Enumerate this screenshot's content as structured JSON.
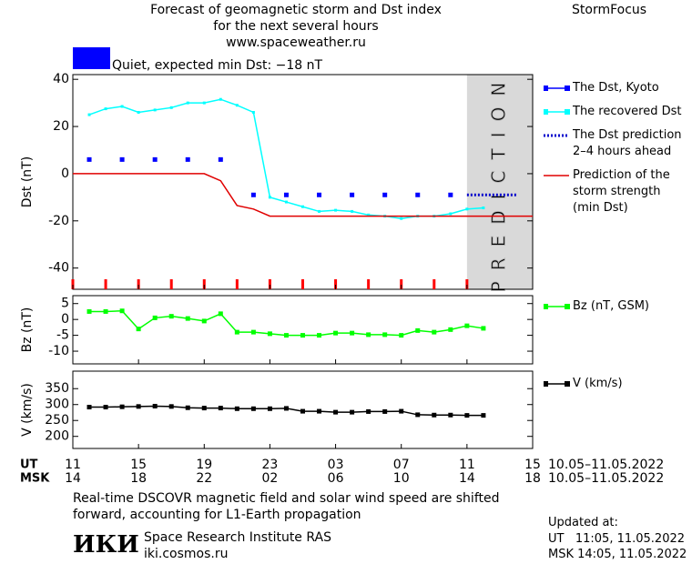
{
  "header": {
    "title": "Forecast of geomagnetic storm and Dst index\nfor the next several hours\nwww.spaceweather.ru",
    "brand": "StormFocus",
    "status": "Quiet, expected min Dst: −18 nT",
    "status_color": "#0000ff"
  },
  "chart_data": [
    {
      "type": "line",
      "ylabel": "Dst (nT)",
      "xlim": [
        11,
        39
      ],
      "ylim": [
        -49,
        42
      ],
      "yticks": [
        -40,
        -20,
        0,
        20,
        40
      ],
      "minor_xticks": {
        "color": "#ff0000",
        "values": [
          11,
          13,
          15,
          17,
          19,
          21,
          23,
          25,
          27,
          29,
          31,
          33,
          35
        ]
      },
      "prediction_region": {
        "x": [
          35,
          39
        ],
        "label": "PREDICTION",
        "color": "#d9d9d9"
      },
      "series": [
        {
          "name": "The Dst, Kyoto",
          "color": "#0000ff",
          "line": "none",
          "marker": "square",
          "x": [
            12,
            14,
            16,
            18,
            20,
            22,
            24,
            26,
            28,
            30,
            32,
            34
          ],
          "values": [
            6,
            6,
            6,
            6,
            6,
            -9,
            -9,
            -9,
            -9,
            -9,
            -9,
            -9
          ]
        },
        {
          "name": "The recovered Dst",
          "color": "#00ffff",
          "line": "solid",
          "marker": "small",
          "x": [
            12,
            13,
            14,
            15,
            16,
            17,
            18,
            19,
            20,
            21,
            22,
            23,
            24,
            25,
            26,
            27,
            28,
            29,
            30,
            31,
            32,
            33,
            34,
            35,
            36
          ],
          "values": [
            25,
            27.5,
            28.5,
            26,
            27,
            28,
            30,
            30,
            31.5,
            29,
            26,
            -10,
            -12,
            -14,
            -16,
            -15.5,
            -16,
            -17.5,
            -18,
            -19,
            -18,
            -18,
            -17,
            -15,
            -14.5
          ]
        },
        {
          "name": "The Dst prediction\n2–4 hours ahead",
          "color": "#0000cc",
          "line": "dotted",
          "marker": "none",
          "x": [
            35,
            38
          ],
          "values": [
            -9,
            -9
          ]
        },
        {
          "name": "Prediction of the\nstorm strength\n(min Dst)",
          "color": "#e00000",
          "line": "solid",
          "marker": "none",
          "x": [
            11,
            19,
            20,
            21,
            22,
            23,
            39
          ],
          "values": [
            0,
            0,
            -3,
            -13.5,
            -15,
            -18,
            -18
          ]
        }
      ]
    },
    {
      "type": "line",
      "ylabel": "Bz (nT)",
      "xlim": [
        11,
        39
      ],
      "ylim": [
        -14,
        7.5
      ],
      "yticks": [
        -10,
        -5,
        0,
        5
      ],
      "series": [
        {
          "name": "Bz (nT, GSM)",
          "color": "#00ff00",
          "line": "solid",
          "marker": "square",
          "x": [
            12,
            13,
            14,
            15,
            16,
            17,
            18,
            19,
            20,
            21,
            22,
            23,
            24,
            25,
            26,
            27,
            28,
            29,
            30,
            31,
            32,
            33,
            34,
            35,
            36
          ],
          "values": [
            2.5,
            2.5,
            2.7,
            -3,
            0.5,
            1,
            0.3,
            -0.5,
            1.8,
            -4,
            -4,
            -4.5,
            -5,
            -5,
            -5,
            -4.3,
            -4.3,
            -4.8,
            -4.8,
            -5,
            -3.5,
            -4,
            -3.2,
            -2,
            -2.8
          ]
        }
      ]
    },
    {
      "type": "line",
      "ylabel": "V (km/s)",
      "xlim": [
        11,
        39
      ],
      "ylim": [
        162,
        405
      ],
      "yticks": [
        200,
        250,
        300,
        350
      ],
      "series": [
        {
          "name": "V (km/s)",
          "color": "#000000",
          "line": "solid",
          "marker": "square",
          "x": [
            12,
            13,
            14,
            15,
            16,
            17,
            18,
            19,
            20,
            21,
            22,
            23,
            24,
            25,
            26,
            27,
            28,
            29,
            30,
            31,
            32,
            33,
            34,
            35,
            36
          ],
          "values": [
            292,
            292,
            293,
            294,
            295,
            294,
            290,
            289,
            289,
            287,
            287,
            287,
            288,
            279,
            279,
            276,
            276,
            278,
            278,
            279,
            268,
            267,
            267,
            266,
            266
          ]
        }
      ]
    }
  ],
  "time_axis": [
    {
      "label": "UT",
      "xlim": [
        11,
        39
      ],
      "dates": "10.05–11.05.2022",
      "ticks": [
        11,
        15,
        19,
        23,
        {
          "value": 27,
          "label": "03"
        },
        {
          "value": 31,
          "label": "07"
        },
        {
          "value": 35,
          "label": "11"
        },
        {
          "value": 39,
          "label": "15"
        }
      ]
    },
    {
      "label": "MSK",
      "xlim": [
        14,
        42
      ],
      "dates": "10.05–11.05.2022",
      "ticks": [
        14,
        18,
        22,
        {
          "value": 26,
          "label": "02"
        },
        {
          "value": 30,
          "label": "06"
        },
        {
          "value": 34,
          "label": "10"
        },
        {
          "value": 38,
          "label": "14"
        },
        {
          "value": 42,
          "label": "18"
        }
      ]
    }
  ],
  "footer": {
    "note": "Real-time DSCOVR magnetic field and solar wind speed are shifted\nforward, accounting for L1-Earth propagation",
    "logo": "ИКИ",
    "institute": "Space Research Institute RAS",
    "site": "iki.cosmos.ru",
    "updated_title": "Updated at:",
    "updated_ut": "UT   11:05, 11.05.2022",
    "updated_msk": "MSK 14:05, 11.05.2022"
  }
}
